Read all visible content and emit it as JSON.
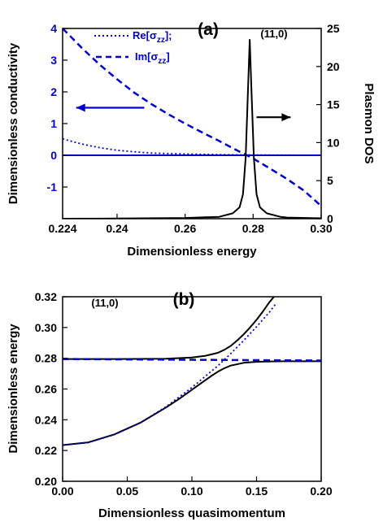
{
  "chart_data": [
    {
      "type": "line",
      "panel_label": "(a)",
      "annotation": "(11,0)",
      "xlabel": "Dimensionless energy",
      "ylabel": "Dimensionless conductivity",
      "y2label": "Plasmon DOS",
      "xlim": [
        0.224,
        0.3
      ],
      "ylim": [
        -2,
        4
      ],
      "y2lim": [
        0,
        25
      ],
      "xticks": [
        "0.224",
        "0.24",
        "0.26",
        "0.28",
        "0.30"
      ],
      "xtick_values": [
        0.224,
        0.24,
        0.26,
        0.28,
        0.3
      ],
      "yticks": [
        "-1",
        "0",
        "1",
        "2",
        "3",
        "4"
      ],
      "ytick_values": [
        -1,
        0,
        1,
        2,
        3,
        4
      ],
      "y2ticks": [
        "0",
        "5",
        "10",
        "15",
        "20",
        "25"
      ],
      "y2tick_values": [
        0,
        5,
        10,
        15,
        20,
        25
      ],
      "legend": [
        {
          "label_main": "Re[σ",
          "label_sub": "zz",
          "label_end": "];",
          "style": "dotted"
        },
        {
          "label_main": "Im[σ",
          "label_sub": "zz",
          "label_end": "]",
          "style": "dashed"
        }
      ],
      "series": [
        {
          "axis": "left",
          "style": "dotted",
          "color": "#0000c8",
          "x": [
            0.224,
            0.228,
            0.232,
            0.236,
            0.24,
            0.245,
            0.25,
            0.26,
            0.27,
            0.28,
            0.29,
            0.3
          ],
          "y": [
            0.52,
            0.4,
            0.3,
            0.22,
            0.16,
            0.11,
            0.07,
            0.04,
            0.02,
            0.01,
            0.005,
            0.0
          ]
        },
        {
          "axis": "left",
          "style": "dashed",
          "color": "#0000c8",
          "x": [
            0.224,
            0.23,
            0.235,
            0.24,
            0.245,
            0.25,
            0.255,
            0.26,
            0.265,
            0.27,
            0.275,
            0.28,
            0.285,
            0.29,
            0.295,
            0.3
          ],
          "y": [
            4.0,
            3.35,
            2.85,
            2.4,
            1.98,
            1.62,
            1.3,
            1.0,
            0.72,
            0.45,
            0.17,
            -0.1,
            -0.42,
            -0.75,
            -1.12,
            -1.6
          ]
        },
        {
          "axis": "left",
          "style": "solid",
          "color": "#0000c8",
          "x": [
            0.224,
            0.3
          ],
          "y": [
            0.0,
            0.0
          ]
        },
        {
          "axis": "right",
          "style": "solid",
          "color": "#000000",
          "x": [
            0.224,
            0.24,
            0.26,
            0.27,
            0.274,
            0.276,
            0.277,
            0.2778,
            0.2785,
            0.279,
            0.2795,
            0.2802,
            0.281,
            0.282,
            0.284,
            0.288,
            0.29,
            0.3
          ],
          "y": [
            0.0,
            0.02,
            0.1,
            0.25,
            0.7,
            1.5,
            3.2,
            8.0,
            17.0,
            23.5,
            17.0,
            8.0,
            3.2,
            1.5,
            0.7,
            0.25,
            0.15,
            0.05
          ]
        }
      ],
      "arrows": [
        {
          "direction": "left",
          "x_from": 0.248,
          "x_to": 0.228,
          "y": 1.5,
          "color": "#0000c8"
        },
        {
          "direction": "right",
          "x_from": 0.281,
          "x_to": 0.291,
          "y": 1.2,
          "color": "#000000"
        }
      ]
    },
    {
      "type": "line",
      "panel_label": "(b)",
      "annotation": "(11,0)",
      "xlabel": "Dimensionless quasimomentum",
      "ylabel": "Dimensionless energy",
      "xlim": [
        0.0,
        0.2
      ],
      "ylim": [
        0.2,
        0.32
      ],
      "xticks": [
        "0.00",
        "0.05",
        "0.10",
        "0.15",
        "0.20"
      ],
      "xtick_values": [
        0.0,
        0.05,
        0.1,
        0.15,
        0.2
      ],
      "yticks": [
        "0.20",
        "0.22",
        "0.24",
        "0.26",
        "0.28",
        "0.30",
        "0.32"
      ],
      "ytick_values": [
        0.2,
        0.22,
        0.24,
        0.26,
        0.28,
        0.3,
        0.32
      ],
      "series": [
        {
          "style": "solid",
          "color": "#000000",
          "x": [
            0.0,
            0.02,
            0.04,
            0.06,
            0.08,
            0.09,
            0.1,
            0.11,
            0.115,
            0.12,
            0.125,
            0.13,
            0.14,
            0.15,
            0.16,
            0.17,
            0.18,
            0.19,
            0.2
          ],
          "y": [
            0.2235,
            0.2253,
            0.2305,
            0.238,
            0.248,
            0.2535,
            0.2595,
            0.2655,
            0.2685,
            0.2712,
            0.2735,
            0.2752,
            0.277,
            0.2777,
            0.2779,
            0.278,
            0.278,
            0.278,
            0.278
          ]
        },
        {
          "style": "solid",
          "color": "#000000",
          "x": [
            0.0,
            0.04,
            0.08,
            0.1,
            0.11,
            0.12,
            0.125,
            0.13,
            0.135,
            0.14,
            0.145,
            0.15,
            0.155,
            0.16,
            0.165
          ],
          "y": [
            0.2795,
            0.2795,
            0.2797,
            0.2805,
            0.2815,
            0.2835,
            0.2855,
            0.288,
            0.2915,
            0.2955,
            0.3,
            0.305,
            0.3105,
            0.3165,
            0.3215
          ]
        },
        {
          "style": "dotted",
          "color": "#0000c8",
          "x": [
            0.0,
            0.02,
            0.04,
            0.06,
            0.08,
            0.1,
            0.12,
            0.13,
            0.14,
            0.15,
            0.16,
            0.165
          ],
          "y": [
            0.2235,
            0.2252,
            0.2303,
            0.238,
            0.2485,
            0.261,
            0.275,
            0.283,
            0.2915,
            0.3005,
            0.31,
            0.3155
          ]
        },
        {
          "style": "dashed",
          "color": "#0000c8",
          "x": [
            0.0,
            0.2
          ],
          "y": [
            0.2795,
            0.2785
          ]
        }
      ]
    }
  ]
}
